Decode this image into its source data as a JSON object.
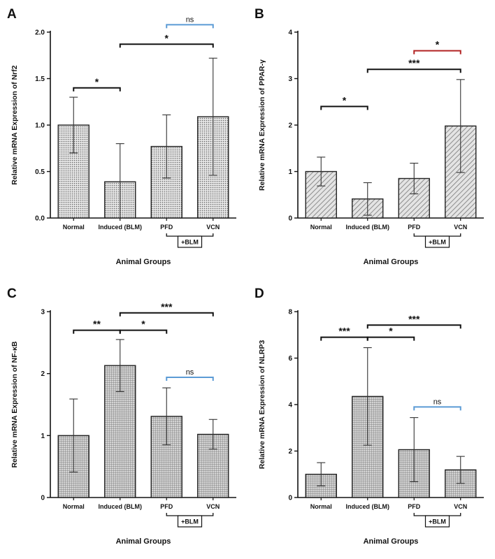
{
  "colors": {
    "axis": "#111111",
    "black_bracket": "#111111",
    "blue_bracket": "#5b9bd5",
    "red_bracket": "#b22222",
    "bar_fill": "#cfcfcf"
  },
  "chart_data": [
    {
      "type": "bar",
      "panel": "A",
      "pattern": "dots",
      "title": "A",
      "ylabel": "Relative mRNA Expression of Nrf2",
      "xlabel": "Animal Groups",
      "categories": [
        "Normal",
        "Induced (BLM)",
        "PFD",
        "VCN"
      ],
      "values": [
        1.0,
        0.39,
        0.77,
        1.09
      ],
      "errors": [
        0.3,
        0.41,
        0.34,
        0.63
      ],
      "ylim": [
        0,
        2.0
      ],
      "yticks": [
        "0.0",
        "0.5",
        "1.0",
        "1.5",
        "2.0"
      ],
      "group_label": "+BLM",
      "brackets": [
        {
          "from": 0,
          "to": 1,
          "y": 1.4,
          "label": "*",
          "color": "black"
        },
        {
          "from": 1,
          "to": 3,
          "y": 1.87,
          "label": "*",
          "color": "black"
        },
        {
          "from": 2,
          "to": 3,
          "y": 2.08,
          "label": "ns",
          "color": "blue"
        }
      ]
    },
    {
      "type": "bar",
      "panel": "B",
      "pattern": "diag",
      "title": "B",
      "ylabel": "Relative mRNA Expression of PPAR-γ",
      "xlabel": "Animal Groups",
      "categories": [
        "Normal",
        "Induced (BLM)",
        "PFD",
        "VCN"
      ],
      "values": [
        1.0,
        0.41,
        0.85,
        1.98
      ],
      "errors": [
        0.31,
        0.35,
        0.33,
        1.0
      ],
      "ylim": [
        0,
        4
      ],
      "yticks": [
        "0",
        "1",
        "2",
        "3",
        "4"
      ],
      "group_label": "+BLM",
      "brackets": [
        {
          "from": 0,
          "to": 1,
          "y": 2.4,
          "label": "*",
          "color": "black"
        },
        {
          "from": 1,
          "to": 3,
          "y": 3.2,
          "label": "***",
          "color": "black"
        },
        {
          "from": 2,
          "to": 3,
          "y": 3.6,
          "label": "*",
          "color": "red"
        }
      ]
    },
    {
      "type": "bar",
      "panel": "C",
      "pattern": "grid",
      "title": "C",
      "ylabel": "Relative mRNA Expression of NF-κB",
      "xlabel": "Animal Groups",
      "categories": [
        "Normal",
        "Induced (BLM)",
        "PFD",
        "VCN"
      ],
      "values": [
        1.0,
        2.13,
        1.31,
        1.02
      ],
      "errors": [
        0.59,
        0.42,
        0.46,
        0.24
      ],
      "ylim": [
        0,
        3
      ],
      "yticks": [
        "0",
        "1",
        "2",
        "3"
      ],
      "group_label": "+BLM",
      "brackets": [
        {
          "from": 0,
          "to": 1,
          "y": 2.7,
          "label": "**",
          "color": "black"
        },
        {
          "from": 1,
          "to": 2,
          "y": 2.7,
          "label": "*",
          "color": "black"
        },
        {
          "from": 1,
          "to": 3,
          "y": 2.98,
          "label": "***",
          "color": "black"
        },
        {
          "from": 2,
          "to": 3,
          "y": 1.94,
          "label": "ns",
          "color": "blue"
        }
      ]
    },
    {
      "type": "bar",
      "panel": "D",
      "pattern": "grid",
      "title": "D",
      "ylabel": "Relative mRNA Expression of NLRP3",
      "xlabel": "Animal Groups",
      "categories": [
        "Normal",
        "Induced (BLM)",
        "PFD",
        "VCN"
      ],
      "values": [
        1.0,
        4.35,
        2.06,
        1.19
      ],
      "errors": [
        0.5,
        2.1,
        1.38,
        0.58
      ],
      "ylim": [
        0,
        8
      ],
      "yticks": [
        "0",
        "2",
        "4",
        "6",
        "8"
      ],
      "group_label": "+BLM",
      "brackets": [
        {
          "from": 0,
          "to": 1,
          "y": 6.9,
          "label": "***",
          "color": "black"
        },
        {
          "from": 1,
          "to": 2,
          "y": 6.9,
          "label": "*",
          "color": "black"
        },
        {
          "from": 1,
          "to": 3,
          "y": 7.42,
          "label": "***",
          "color": "black"
        },
        {
          "from": 2,
          "to": 3,
          "y": 3.9,
          "label": "ns",
          "color": "blue"
        }
      ]
    }
  ]
}
